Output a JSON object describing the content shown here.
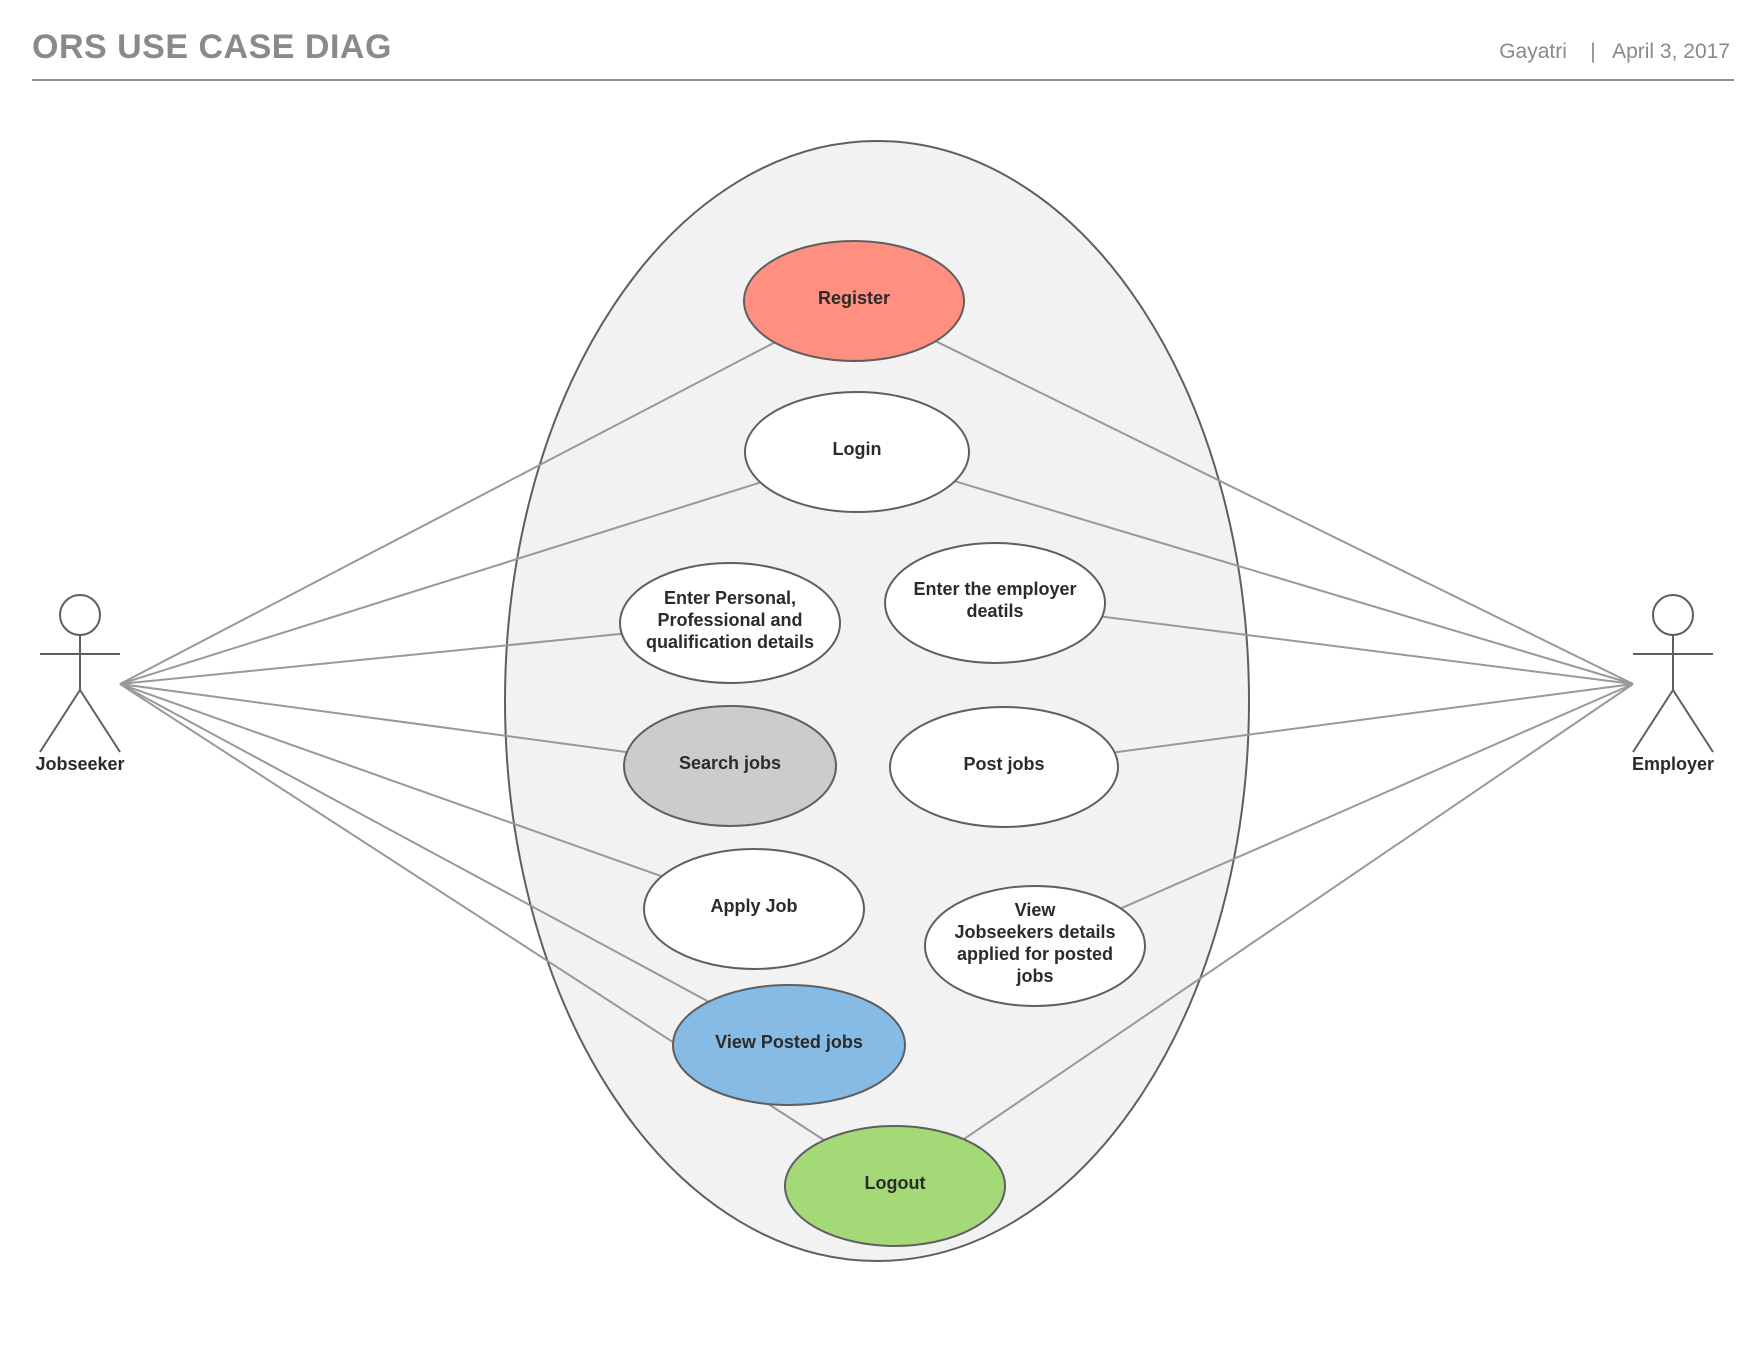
{
  "header": {
    "title": "ORS USE CASE DIAG",
    "author": "Gayatri",
    "separator": "|",
    "date": "April 3, 2017"
  },
  "colors": {
    "register": "#ff8f80",
    "search_jobs": "#cccccc",
    "view_posted_jobs": "#86bbe5",
    "logout": "#a3d977",
    "default_use_case": "#ffffff",
    "system_boundary": "#f2f2f2"
  },
  "actors": {
    "jobseeker": "Jobseeker",
    "employer": "Employer"
  },
  "use_cases": {
    "register": [
      "Register"
    ],
    "login": [
      "Login"
    ],
    "enter_personal": [
      "Enter Personal,",
      "Professional and",
      "qualification details"
    ],
    "enter_employer": [
      "Enter the employer",
      "deatils"
    ],
    "search_jobs": [
      "Search jobs"
    ],
    "post_jobs": [
      "Post jobs"
    ],
    "apply_job": [
      "Apply Job"
    ],
    "view_jobseekers": [
      "View",
      "Jobseekers details",
      "applied for posted",
      "jobs"
    ],
    "view_posted_jobs": [
      "View Posted jobs"
    ],
    "logout": [
      "Logout"
    ]
  },
  "associations": {
    "jobseeker": [
      "register",
      "login",
      "enter_personal",
      "search_jobs",
      "apply_job",
      "view_posted_jobs",
      "logout"
    ],
    "employer": [
      "register",
      "login",
      "enter_employer",
      "post_jobs",
      "view_jobseekers",
      "logout"
    ]
  }
}
